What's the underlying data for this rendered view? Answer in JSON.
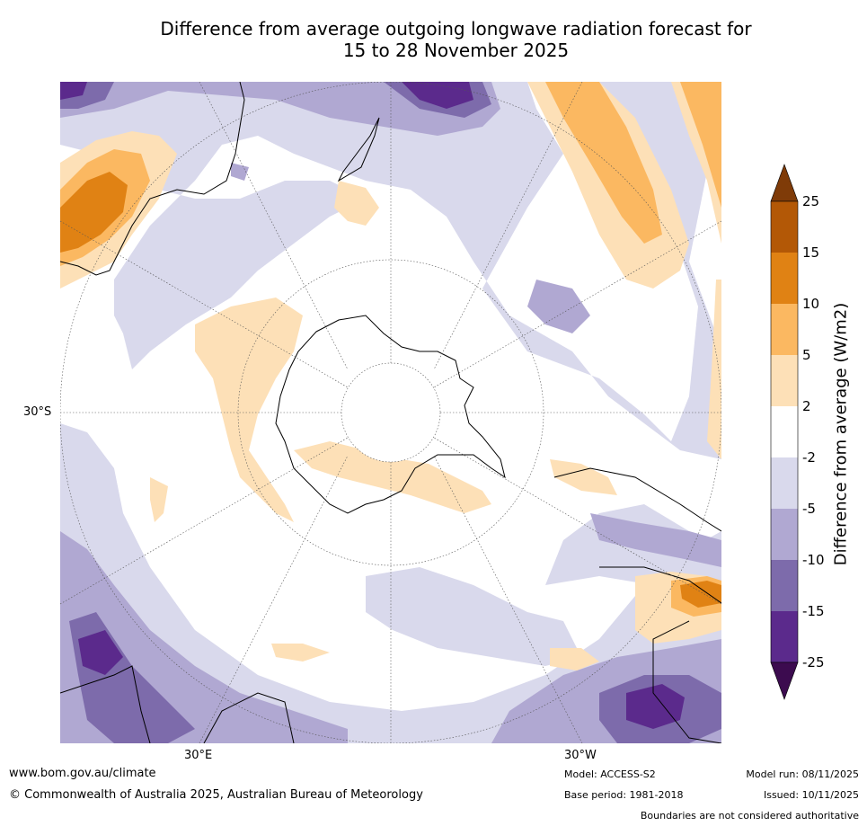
{
  "title_line1": "Difference from average outgoing longwave radiation forecast for",
  "title_line2": "15 to 28 November 2025",
  "map": {
    "projection": "south-polar stereographic",
    "lat_label": "30°S",
    "lon_label_left": "30°E",
    "lon_label_right": "30°W"
  },
  "colorbar": {
    "title": "Difference from average (W/m2)",
    "ticks": [
      "25",
      "15",
      "10",
      "5",
      "2",
      "-2",
      "-5",
      "-10",
      "-15",
      "-25"
    ],
    "colors": [
      "#3c0b4f",
      "#5b2a8c",
      "#7d6bab",
      "#b0a8d2",
      "#d9d9ec",
      "#ffffff",
      "#fde0b7",
      "#fbb861",
      "#e08214",
      "#b35806",
      "#7f3b08"
    ]
  },
  "footer": {
    "website": "www.bom.gov.au/climate",
    "copyright": "© Commonwealth of Australia 2025, Australian Bureau of Meteorology",
    "model": "Model: ACCESS-S2",
    "base_period": "Base period: 1981-2018",
    "model_run": "Model run: 08/11/2025",
    "issued": "Issued: 10/11/2025",
    "disclaimer": "Boundaries are not considered authoritative"
  }
}
